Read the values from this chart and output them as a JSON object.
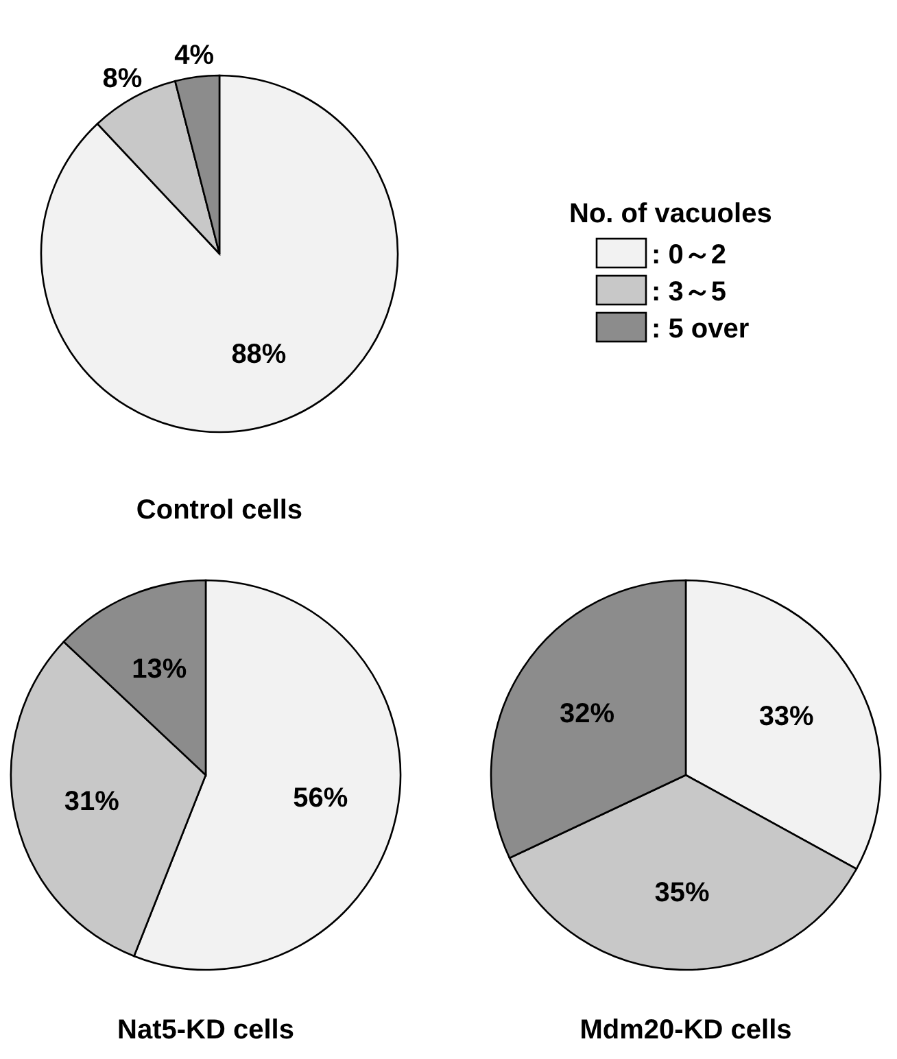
{
  "chart_data": [
    {
      "type": "pie",
      "title": "Control cells",
      "categories": [
        ": 0～2",
        ": 3～5",
        ": 5 over"
      ],
      "values": [
        88,
        8,
        4
      ],
      "colors": [
        "#f2f2f2",
        "#c8c8c8",
        "#8c8c8c"
      ],
      "value_labels": [
        "88%",
        "8%",
        "4%"
      ],
      "legend": "right",
      "legend_title": "No. of vacuoles"
    },
    {
      "type": "pie",
      "title": "Nat5-KD cells",
      "categories": [
        null,
        null,
        null
      ],
      "values": [
        56,
        31,
        13
      ],
      "colors": [
        "#f2f2f2",
        "#c8c8c8",
        "#8c8c8c"
      ],
      "value_labels": [
        "56%",
        "31%",
        "13%"
      ]
    },
    {
      "type": "pie",
      "title": "Mdm20-KD cells",
      "categories": [
        null,
        null,
        null
      ],
      "values": [
        33,
        35,
        32
      ],
      "colors": [
        "#f2f2f2",
        "#c8c8c8",
        "#8c8c8c"
      ],
      "value_labels": [
        "33%",
        "35%",
        "32%"
      ]
    }
  ]
}
